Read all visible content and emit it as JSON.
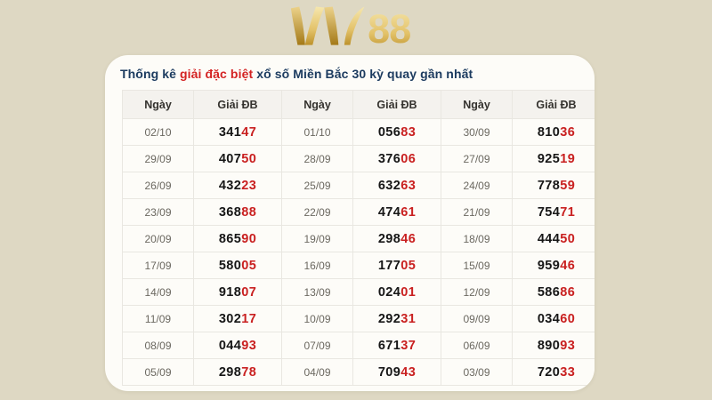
{
  "logo": {
    "name": "W88",
    "number": "88"
  },
  "title": {
    "prefix": "Thống kê ",
    "highlight": "giải đặc biệt",
    "suffix": " xổ số Miền Bắc 30 kỳ quay gần nhất"
  },
  "table": {
    "headers": [
      "Ngày",
      "Giải ĐB",
      "Ngày",
      "Giải ĐB",
      "Ngày",
      "Giải ĐB"
    ],
    "rows": [
      [
        {
          "date": "02/10",
          "main": "341",
          "tail": "47"
        },
        {
          "date": "01/10",
          "main": "056",
          "tail": "83"
        },
        {
          "date": "30/09",
          "main": "810",
          "tail": "36"
        }
      ],
      [
        {
          "date": "29/09",
          "main": "407",
          "tail": "50"
        },
        {
          "date": "28/09",
          "main": "376",
          "tail": "06"
        },
        {
          "date": "27/09",
          "main": "925",
          "tail": "19"
        }
      ],
      [
        {
          "date": "26/09",
          "main": "432",
          "tail": "23"
        },
        {
          "date": "25/09",
          "main": "632",
          "tail": "63"
        },
        {
          "date": "24/09",
          "main": "778",
          "tail": "59"
        }
      ],
      [
        {
          "date": "23/09",
          "main": "368",
          "tail": "88"
        },
        {
          "date": "22/09",
          "main": "474",
          "tail": "61"
        },
        {
          "date": "21/09",
          "main": "754",
          "tail": "71"
        }
      ],
      [
        {
          "date": "20/09",
          "main": "865",
          "tail": "90"
        },
        {
          "date": "19/09",
          "main": "298",
          "tail": "46"
        },
        {
          "date": "18/09",
          "main": "444",
          "tail": "50"
        }
      ],
      [
        {
          "date": "17/09",
          "main": "580",
          "tail": "05"
        },
        {
          "date": "16/09",
          "main": "177",
          "tail": "05"
        },
        {
          "date": "15/09",
          "main": "959",
          "tail": "46"
        }
      ],
      [
        {
          "date": "14/09",
          "main": "918",
          "tail": "07"
        },
        {
          "date": "13/09",
          "main": "024",
          "tail": "01"
        },
        {
          "date": "12/09",
          "main": "586",
          "tail": "86"
        }
      ],
      [
        {
          "date": "11/09",
          "main": "302",
          "tail": "17"
        },
        {
          "date": "10/09",
          "main": "292",
          "tail": "31"
        },
        {
          "date": "09/09",
          "main": "034",
          "tail": "60"
        }
      ],
      [
        {
          "date": "08/09",
          "main": "044",
          "tail": "93"
        },
        {
          "date": "07/09",
          "main": "671",
          "tail": "37"
        },
        {
          "date": "06/09",
          "main": "890",
          "tail": "93"
        }
      ],
      [
        {
          "date": "05/09",
          "main": "298",
          "tail": "78"
        },
        {
          "date": "04/09",
          "main": "709",
          "tail": "43"
        },
        {
          "date": "03/09",
          "main": "720",
          "tail": "33"
        }
      ]
    ]
  },
  "colors": {
    "page_bg": "#ded8c3",
    "card_bg": "#fdfcf8",
    "title_navy": "#1d3c60",
    "highlight_red": "#d42323",
    "prize_main": "#161616",
    "prize_tail_red": "#c92020",
    "date_gray": "#6b6860",
    "header_bg": "#f4f2ee",
    "border": "#e9e7e1",
    "logo_gold": "#c59b35"
  }
}
